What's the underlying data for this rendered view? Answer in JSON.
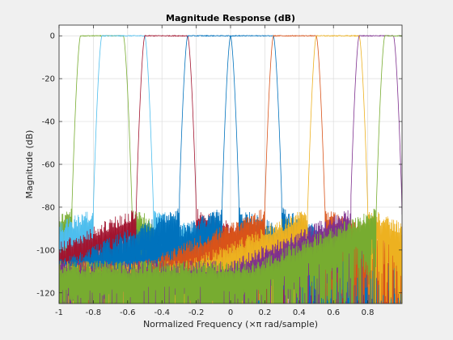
{
  "chart_data": {
    "type": "line",
    "title": "Magnitude Response (dB)",
    "xlabel": "Normalized Frequency (×π rad/sample)",
    "ylabel": "Magnitude (dB)",
    "xlim": [
      -1,
      1
    ],
    "ylim": [
      -125,
      5
    ],
    "xticks": [
      -1,
      -0.8,
      -0.6,
      -0.4,
      -0.2,
      0,
      0.2,
      0.4,
      0.6,
      0.8
    ],
    "xtick_labels": [
      "-1",
      "-0.8",
      "-0.6",
      "-0.4",
      "-0.2",
      "0",
      "0.2",
      "0.4",
      "0.6",
      "0.8"
    ],
    "yticks": [
      0,
      -20,
      -40,
      -60,
      -80,
      -100,
      -120
    ],
    "ytick_labels": [
      "0",
      "-20",
      "-40",
      "-60",
      "-80",
      "-100",
      "-120"
    ],
    "grid": true,
    "series": [
      {
        "color": "#77AC30",
        "passband": [
          -0.875,
          -0.625
        ],
        "passband_db": 0,
        "stopband_floor_db": -80
      },
      {
        "color": "#4DBEEE",
        "passband": [
          -0.75,
          -0.5
        ],
        "passband_db": 0,
        "stopband_floor_db": -80
      },
      {
        "color": "#A2142F",
        "passband": [
          -0.5,
          -0.25
        ],
        "passband_db": 0,
        "stopband_floor_db": -80
      },
      {
        "color": "#0072BD",
        "passband": [
          -0.25,
          0
        ],
        "passband_db": 0,
        "stopband_floor_db": -80
      },
      {
        "color": "#0072BD",
        "passband": [
          0,
          0.25
        ],
        "passband_db": 0,
        "stopband_floor_db": -80
      },
      {
        "color": "#D95319",
        "passband": [
          0.25,
          0.5
        ],
        "passband_db": 0,
        "stopband_floor_db": -80
      },
      {
        "color": "#EDB120",
        "passband": [
          0.5,
          0.75
        ],
        "passband_db": 0,
        "stopband_floor_db": -80
      },
      {
        "color": "#7E2F8E",
        "passband": [
          0.75,
          0.95
        ],
        "passband_db": 0,
        "stopband_floor_db": -80
      },
      {
        "color": "#77AC30",
        "passband": [
          0.9,
          1.0
        ],
        "passband_db": 0,
        "stopband_floor_db": -80
      }
    ]
  }
}
